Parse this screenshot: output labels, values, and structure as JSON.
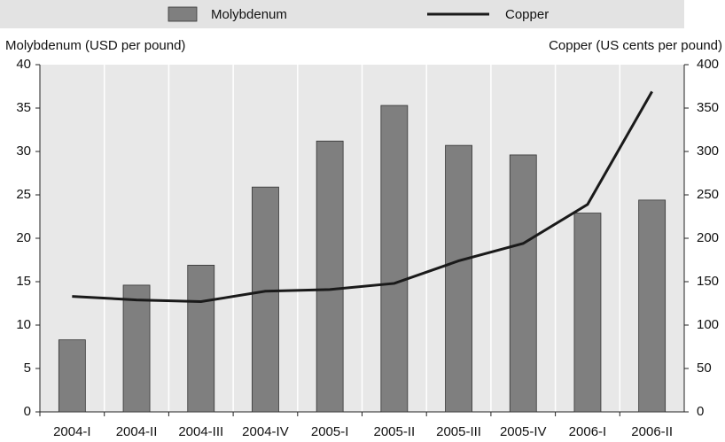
{
  "chart_data": {
    "type": "bar",
    "categories": [
      "2004-I",
      "2004-II",
      "2004-III",
      "2004-IV",
      "2005-I",
      "2005-II",
      "2005-III",
      "2005-IV",
      "2006-I",
      "2006-II"
    ],
    "series": [
      {
        "name": "Molybdenum",
        "type": "bar",
        "color": "#7f7f7f",
        "values": [
          8.3,
          14.6,
          16.9,
          25.9,
          31.2,
          35.3,
          30.7,
          29.6,
          22.9,
          24.4
        ]
      },
      {
        "name": "Copper",
        "type": "line",
        "axis": "y2",
        "color": "#1a1a1a",
        "values": [
          133,
          129,
          127,
          139,
          141,
          148,
          174,
          194,
          239,
          369
        ]
      }
    ],
    "y_label": "Molybdenum (USD per pound)",
    "y2_label": "Copper (US cents per pound)",
    "ylim": [
      0,
      40
    ],
    "yticks": [
      0,
      5,
      10,
      15,
      20,
      25,
      30,
      35,
      40
    ],
    "y2lim": [
      0,
      400
    ],
    "y2ticks": [
      0,
      50,
      100,
      150,
      200,
      250,
      300,
      350,
      400
    ],
    "legend": "top"
  }
}
